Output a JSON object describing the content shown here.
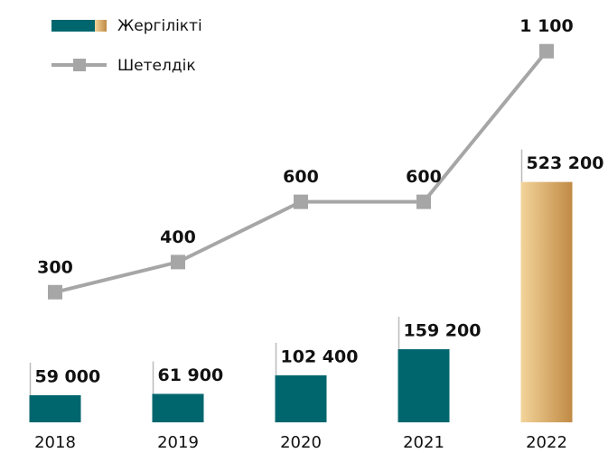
{
  "chart_data": {
    "type": "bar_line",
    "categories": [
      "2018",
      "2019",
      "2020",
      "2021",
      "2022"
    ],
    "series": [
      {
        "name": "Жергілікті",
        "type": "bar",
        "colors": [
          "#00666e",
          "#00666e",
          "#00666e",
          "#00666e",
          "#d4a862"
        ],
        "values": [
          59000,
          61900,
          102400,
          159200,
          523200
        ],
        "value_labels": [
          "59 000",
          "61 900",
          "102 400",
          "159 200",
          "523 200"
        ]
      },
      {
        "name": "Шетелдік",
        "type": "line",
        "axis": "y2",
        "color": "#a6a6a6",
        "values": [
          300,
          400,
          600,
          600,
          1100
        ],
        "value_labels": [
          "300",
          "400",
          "600",
          "600",
          "1 100"
        ]
      }
    ],
    "ylim": [
      0,
      880000
    ],
    "y2lim": [
      -132,
      1210
    ]
  }
}
